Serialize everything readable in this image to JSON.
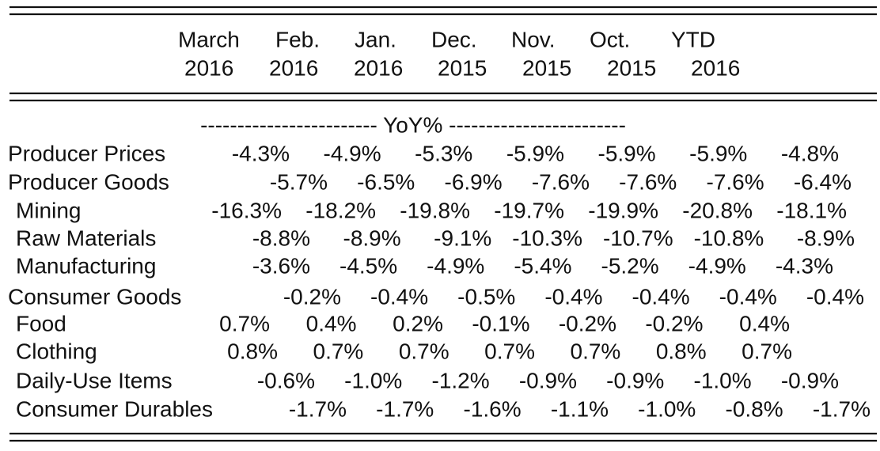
{
  "header": {
    "columns": [
      {
        "month": "March",
        "year": "2016"
      },
      {
        "month": "Feb.",
        "year": "2016"
      },
      {
        "month": "Jan.",
        "year": "2016"
      },
      {
        "month": "Dec.",
        "year": "2015"
      },
      {
        "month": "Nov.",
        "year": "2015"
      },
      {
        "month": "Oct.",
        "year": "2015"
      },
      {
        "month": "YTD",
        "year": "2016"
      }
    ]
  },
  "section": "------------------------ YoY% ------------------------",
  "table": {
    "rows": [
      {
        "label": "Producer Prices",
        "values": [
          "-4.3%",
          "-4.9%",
          "-5.3%",
          "-5.9%",
          "-5.9%",
          "-5.9%",
          "-4.8%"
        ]
      },
      {
        "label": "Producer Goods",
        "values": [
          "-5.7%",
          "-6.5%",
          "-6.9%",
          "-7.6%",
          "-7.6%",
          "-7.6%",
          "-6.4%"
        ]
      },
      {
        "label": "Mining",
        "values": [
          "-16.3%",
          "-18.2%",
          "-19.8%",
          "-19.7%",
          "-19.9%",
          "-20.8%",
          "-18.1%"
        ]
      },
      {
        "label": "Raw Materials",
        "values": [
          "-8.8%",
          "-8.9%",
          "-9.1%",
          "-10.3%",
          "-10.7%",
          "-10.8%",
          "-8.9%"
        ]
      },
      {
        "label": "Manufacturing",
        "values": [
          "-3.6%",
          "-4.5%",
          "-4.9%",
          "-5.4%",
          "-5.2%",
          "-4.9%",
          "-4.3%"
        ]
      },
      {
        "label": "Consumer Goods",
        "values": [
          "-0.2%",
          "-0.4%",
          "-0.5%",
          "-0.4%",
          "-0.4%",
          "-0.4%",
          "-0.4%"
        ]
      },
      {
        "label": "Food",
        "values": [
          "0.7%",
          "0.4%",
          "0.2%",
          "-0.1%",
          "-0.2%",
          "-0.2%",
          "0.4%"
        ]
      },
      {
        "label": "Clothing",
        "values": [
          "0.8%",
          "0.7%",
          "0.7%",
          "0.7%",
          "0.7%",
          "0.8%",
          "0.7%"
        ]
      },
      {
        "label": "Daily-Use Items",
        "values": [
          "-0.6%",
          "-1.0%",
          "-1.2%",
          "-0.9%",
          "-0.9%",
          "-1.0%",
          "-0.9%"
        ]
      },
      {
        "label": "Consumer Durables",
        "values": [
          "-1.7%",
          "-1.7%",
          "-1.6%",
          "-1.1%",
          "-1.0%",
          "-0.8%",
          "-1.7%"
        ]
      }
    ]
  }
}
